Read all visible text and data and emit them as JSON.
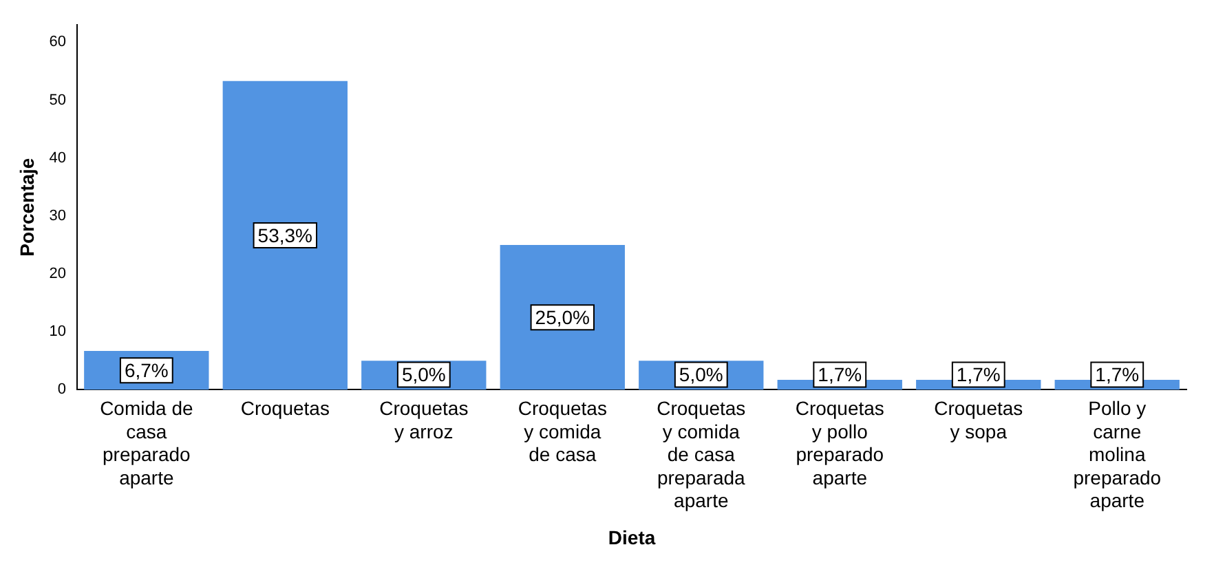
{
  "chart_data": {
    "type": "bar",
    "xlabel": "Dieta",
    "ylabel": "Porcentaje",
    "categories": [
      "Comida de casa preparado aparte",
      "Croquetas",
      "Croquetas y arroz",
      "Croquetas y comida de casa",
      "Croquetas y comida de casa preparada aparte",
      "Croquetas y pollo preparado aparte",
      "Croquetas y sopa",
      "Pollo y carne molina preparado aparte"
    ],
    "values": [
      6.7,
      53.3,
      5.0,
      25.0,
      5.0,
      1.7,
      1.7,
      1.7
    ],
    "value_labels": [
      "6,7%",
      "53,3%",
      "5,0%",
      "25,0%",
      "5,0%",
      "1,7%",
      "1,7%",
      "1,7%"
    ],
    "color": "#5294e2",
    "ylim": [
      0,
      63
    ],
    "yticks": [
      0,
      10,
      20,
      30,
      40,
      50,
      60
    ],
    "grid": false,
    "legend": false
  }
}
